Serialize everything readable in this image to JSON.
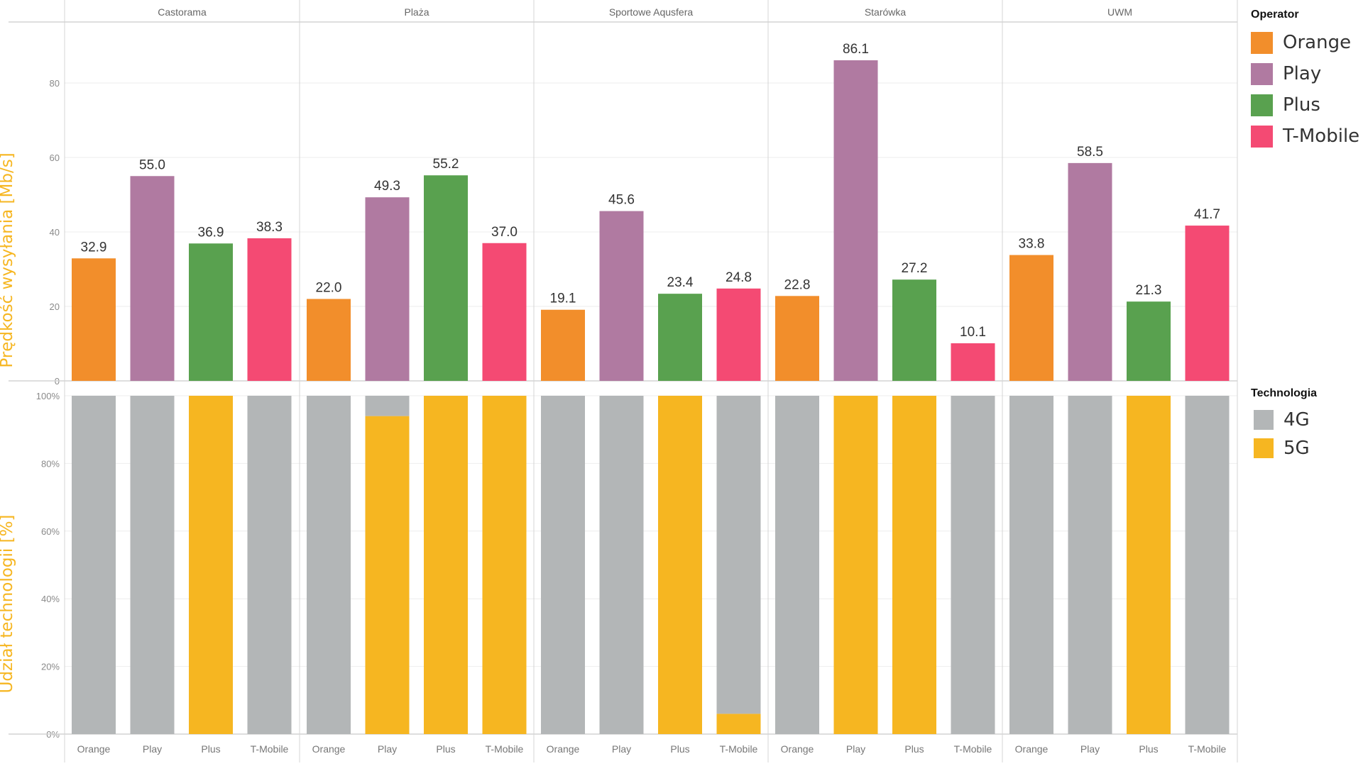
{
  "chart_data": [
    {
      "type": "bar",
      "title": "",
      "facet_label": "Lokalizacja",
      "facets": [
        "Castorama",
        "Plaża",
        "Sportowe Aqusfera",
        "Starówka",
        "UWM"
      ],
      "categories": [
        "Orange",
        "Play",
        "Plus",
        "T-Mobile"
      ],
      "ylabel": "Prędkość wysyłania [Mb/s]",
      "xlabel": "",
      "ylim": [
        0,
        96
      ],
      "yticks": [
        0,
        20,
        40,
        60,
        80
      ],
      "ytick_labels": [
        "0",
        "20",
        "40",
        "60",
        "80"
      ],
      "grid": true,
      "data_labels": true,
      "values": [
        [
          32.9,
          55.0,
          36.9,
          38.3
        ],
        [
          22.0,
          49.3,
          55.2,
          37.0
        ],
        [
          19.1,
          45.6,
          23.4,
          24.8
        ],
        [
          22.8,
          86.1,
          27.2,
          10.1
        ],
        [
          33.8,
          58.5,
          21.3,
          41.7
        ]
      ],
      "value_labels": [
        [
          "32.9",
          "55.0",
          "36.9",
          "38.3"
        ],
        [
          "22.0",
          "49.3",
          "55.2",
          "37.0"
        ],
        [
          "19.1",
          "45.6",
          "23.4",
          "24.8"
        ],
        [
          "22.8",
          "86.1",
          "27.2",
          "10.1"
        ],
        [
          "33.8",
          "58.5",
          "21.3",
          "41.7"
        ]
      ],
      "legend_title": "Operator",
      "legend_placement": "top-right"
    },
    {
      "type": "bar",
      "stacked": true,
      "title": "",
      "facets": [
        "Castorama",
        "Plaża",
        "Sportowe Aqusfera",
        "Starówka",
        "UWM"
      ],
      "categories": [
        "Orange",
        "Play",
        "Plus",
        "T-Mobile"
      ],
      "ylabel": "Udział technologii [%]",
      "xlabel": "",
      "ylim": [
        0,
        100
      ],
      "yticks": [
        0,
        20,
        40,
        60,
        80,
        100
      ],
      "ytick_labels": [
        "0%",
        "20%",
        "40%",
        "60%",
        "80%",
        "100%"
      ],
      "grid": true,
      "series": [
        {
          "name": "4G",
          "values": [
            [
              100,
              100,
              0,
              100
            ],
            [
              100,
              6,
              0,
              0
            ],
            [
              100,
              100,
              0,
              94
            ],
            [
              100,
              0,
              0,
              100
            ],
            [
              100,
              100,
              0,
              100
            ]
          ]
        },
        {
          "name": "5G",
          "values": [
            [
              0,
              0,
              100,
              0
            ],
            [
              0,
              94,
              100,
              100
            ],
            [
              0,
              0,
              100,
              6
            ],
            [
              0,
              100,
              100,
              0
            ],
            [
              0,
              0,
              100,
              0
            ]
          ]
        }
      ],
      "legend_title": "Technologia",
      "legend_placement": "right"
    }
  ],
  "colors": {
    "operators": {
      "Orange": "#F28E2B",
      "Play": "#B07AA1",
      "Plus": "#59A14F",
      "T-Mobile": "#F44A73"
    },
    "technologies": {
      "4G": "#B3B6B7",
      "5G": "#F6B621"
    },
    "axis_title": "#F6B621"
  },
  "legends": {
    "operator": {
      "title": "Operator",
      "items": [
        "Orange",
        "Play",
        "Plus",
        "T-Mobile"
      ]
    },
    "technology": {
      "title": "Technologia",
      "items": [
        "4G",
        "5G"
      ]
    }
  }
}
